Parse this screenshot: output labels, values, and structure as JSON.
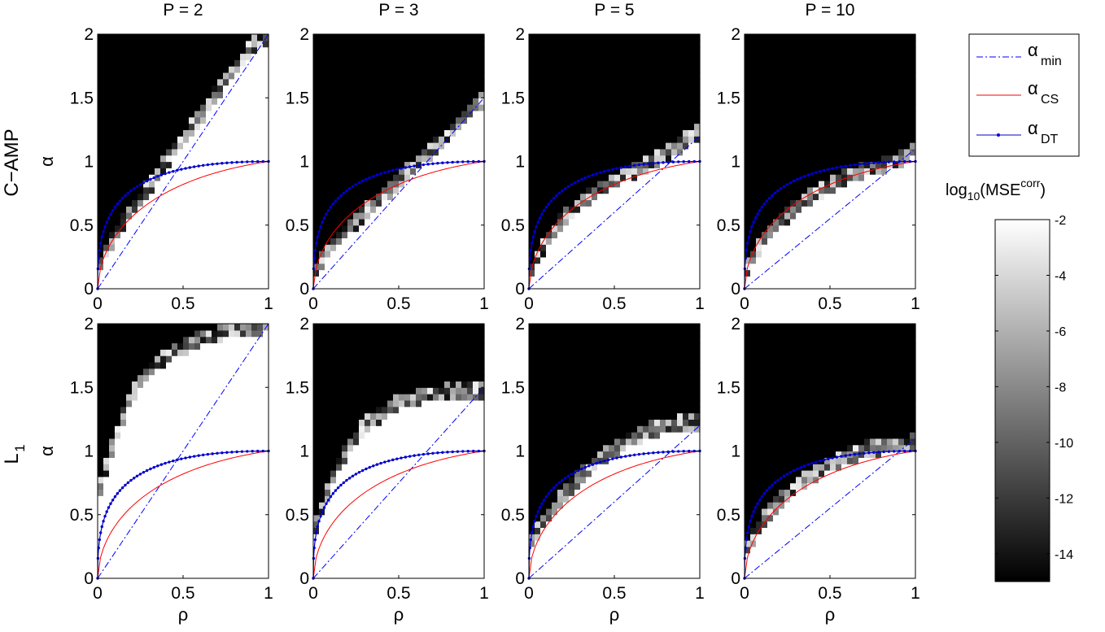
{
  "figure": {
    "row_labels": [
      "C−AMP",
      "L",
      "1"
    ],
    "colorbar_label": {
      "prefix": "log",
      "sub": "10",
      "mid": "(MSE",
      "sup": "corr",
      "suffix": ")"
    },
    "colorbar_ticks": [
      "-2",
      "-4",
      "-6",
      "-8",
      "-10",
      "-12",
      "-14"
    ],
    "legend": [
      {
        "symbol": "α",
        "sub": "min"
      },
      {
        "symbol": "α",
        "sub": "CS"
      },
      {
        "symbol": "α",
        "sub": "DT"
      }
    ],
    "colors": {
      "alpha_min": "#0000ff",
      "alpha_cs": "#ff0000",
      "alpha_dt": "#0000cc",
      "background": "#ffffff"
    }
  },
  "chart_data": [
    {
      "type": "heatmap",
      "row": "C−AMP",
      "title": "P = 2",
      "xlabel": "",
      "ylabel": "α",
      "xlim": [
        0,
        1
      ],
      "ylim": [
        0,
        2
      ],
      "xticks": [
        "0",
        "0.5",
        "1"
      ],
      "yticks": [
        "0",
        "0.5",
        "1",
        "1.5",
        "2"
      ],
      "alpha_min_slope": 2,
      "boundary": [
        [
          0,
          0.15
        ],
        [
          0.1,
          0.42
        ],
        [
          0.2,
          0.62
        ],
        [
          0.3,
          0.8
        ],
        [
          0.4,
          1.0
        ],
        [
          0.5,
          1.18
        ],
        [
          0.6,
          1.35
        ],
        [
          0.7,
          1.55
        ],
        [
          0.8,
          1.72
        ],
        [
          0.9,
          1.9
        ],
        [
          1,
          2.0
        ]
      ],
      "colorscale": [
        -15,
        -2
      ]
    },
    {
      "type": "heatmap",
      "row": "C−AMP",
      "title": "P = 3",
      "xlabel": "",
      "ylabel": "",
      "xlim": [
        0,
        1
      ],
      "ylim": [
        0,
        2
      ],
      "xticks": [
        "0",
        "0.5",
        "1"
      ],
      "yticks": [
        "0",
        "0.5",
        "1",
        "1.5",
        "2"
      ],
      "alpha_min_slope": 1.5,
      "boundary": [
        [
          0,
          0.12
        ],
        [
          0.1,
          0.32
        ],
        [
          0.2,
          0.47
        ],
        [
          0.3,
          0.6
        ],
        [
          0.4,
          0.72
        ],
        [
          0.5,
          0.85
        ],
        [
          0.6,
          0.98
        ],
        [
          0.7,
          1.1
        ],
        [
          0.8,
          1.22
        ],
        [
          0.9,
          1.37
        ],
        [
          1,
          1.5
        ]
      ],
      "colorscale": [
        -15,
        -2
      ]
    },
    {
      "type": "heatmap",
      "row": "C−AMP",
      "title": "P = 5",
      "xlabel": "",
      "ylabel": "",
      "xlim": [
        0,
        1
      ],
      "ylim": [
        0,
        2
      ],
      "xticks": [
        "0",
        "0.5",
        "1"
      ],
      "yticks": [
        "0",
        "0.5",
        "1",
        "1.5",
        "2"
      ],
      "alpha_min_slope": 1.2,
      "boundary": [
        [
          0,
          0.12
        ],
        [
          0.1,
          0.37
        ],
        [
          0.2,
          0.55
        ],
        [
          0.3,
          0.68
        ],
        [
          0.4,
          0.78
        ],
        [
          0.5,
          0.85
        ],
        [
          0.6,
          0.92
        ],
        [
          0.7,
          0.98
        ],
        [
          0.8,
          1.05
        ],
        [
          0.9,
          1.15
        ],
        [
          1,
          1.25
        ]
      ],
      "colorscale": [
        -15,
        -2
      ]
    },
    {
      "type": "heatmap",
      "row": "C−AMP",
      "title": "P = 10",
      "xlabel": "",
      "ylabel": "",
      "xlim": [
        0,
        1
      ],
      "ylim": [
        0,
        2
      ],
      "xticks": [
        "0",
        "0.5",
        "1"
      ],
      "yticks": [
        "0",
        "0.5",
        "1",
        "1.5",
        "2"
      ],
      "alpha_min_slope": 1.1,
      "boundary": [
        [
          0,
          0.15
        ],
        [
          0.1,
          0.36
        ],
        [
          0.2,
          0.52
        ],
        [
          0.3,
          0.64
        ],
        [
          0.4,
          0.74
        ],
        [
          0.5,
          0.82
        ],
        [
          0.6,
          0.88
        ],
        [
          0.7,
          0.93
        ],
        [
          0.8,
          0.97
        ],
        [
          0.9,
          1.02
        ],
        [
          1,
          1.1
        ]
      ],
      "colorscale": [
        -15,
        -2
      ]
    },
    {
      "type": "heatmap",
      "row": "L1",
      "title": "",
      "xlabel": "ρ",
      "ylabel": "α",
      "xlim": [
        0,
        1
      ],
      "ylim": [
        0,
        2
      ],
      "xticks": [
        "0",
        "0.5",
        "1"
      ],
      "yticks": [
        "0",
        "0.5",
        "1",
        "1.5",
        "2"
      ],
      "alpha_min_slope": 2,
      "boundary": [
        [
          0,
          0.65
        ],
        [
          0.1,
          1.1
        ],
        [
          0.2,
          1.45
        ],
        [
          0.3,
          1.62
        ],
        [
          0.4,
          1.75
        ],
        [
          0.5,
          1.82
        ],
        [
          0.6,
          1.88
        ],
        [
          0.7,
          1.92
        ],
        [
          0.8,
          1.95
        ],
        [
          0.9,
          1.97
        ],
        [
          1,
          2.0
        ]
      ],
      "colorscale": [
        -15,
        -2
      ]
    },
    {
      "type": "heatmap",
      "row": "L1",
      "title": "",
      "xlabel": "ρ",
      "ylabel": "",
      "xlim": [
        0,
        1
      ],
      "ylim": [
        0,
        2
      ],
      "xticks": [
        "0",
        "0.5",
        "1"
      ],
      "yticks": [
        "0",
        "0.5",
        "1",
        "1.5",
        "2"
      ],
      "alpha_min_slope": 1.5,
      "boundary": [
        [
          0,
          0.35
        ],
        [
          0.1,
          0.75
        ],
        [
          0.2,
          1.02
        ],
        [
          0.3,
          1.2
        ],
        [
          0.4,
          1.3
        ],
        [
          0.5,
          1.38
        ],
        [
          0.6,
          1.42
        ],
        [
          0.7,
          1.45
        ],
        [
          0.8,
          1.47
        ],
        [
          0.9,
          1.48
        ],
        [
          1,
          1.48
        ]
      ],
      "colorscale": [
        -15,
        -2
      ]
    },
    {
      "type": "heatmap",
      "row": "L1",
      "title": "",
      "xlabel": "ρ",
      "ylabel": "",
      "xlim": [
        0,
        1
      ],
      "ylim": [
        0,
        2
      ],
      "xticks": [
        "0",
        "0.5",
        "1"
      ],
      "yticks": [
        "0",
        "0.5",
        "1",
        "1.5",
        "2"
      ],
      "alpha_min_slope": 1.2,
      "boundary": [
        [
          0,
          0.25
        ],
        [
          0.1,
          0.48
        ],
        [
          0.2,
          0.65
        ],
        [
          0.3,
          0.8
        ],
        [
          0.4,
          0.92
        ],
        [
          0.5,
          1.02
        ],
        [
          0.6,
          1.1
        ],
        [
          0.7,
          1.16
        ],
        [
          0.8,
          1.2
        ],
        [
          0.9,
          1.22
        ],
        [
          1,
          1.22
        ]
      ],
      "colorscale": [
        -15,
        -2
      ]
    },
    {
      "type": "heatmap",
      "row": "L1",
      "title": "",
      "xlabel": "ρ",
      "ylabel": "",
      "xlim": [
        0,
        1
      ],
      "ylim": [
        0,
        2
      ],
      "xticks": [
        "0",
        "0.5",
        "1"
      ],
      "yticks": [
        "0",
        "0.5",
        "1",
        "1.5",
        "2"
      ],
      "alpha_min_slope": 1.1,
      "boundary": [
        [
          0,
          0.22
        ],
        [
          0.1,
          0.44
        ],
        [
          0.2,
          0.6
        ],
        [
          0.3,
          0.72
        ],
        [
          0.4,
          0.82
        ],
        [
          0.5,
          0.9
        ],
        [
          0.6,
          0.96
        ],
        [
          0.7,
          1.01
        ],
        [
          0.8,
          1.04
        ],
        [
          0.9,
          1.06
        ],
        [
          1,
          1.07
        ]
      ],
      "colorscale": [
        -15,
        -2
      ]
    }
  ]
}
